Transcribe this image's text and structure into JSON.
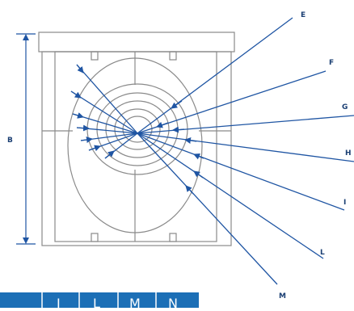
{
  "diagram": {
    "colors": {
      "frame": "#8a8a8a",
      "arrow": "#1f55a3",
      "label": "#1b3f73",
      "header_band": "#1c6fb6"
    },
    "dimension_label": "B",
    "ray_labels": [
      "E",
      "F",
      "G",
      "H",
      "I",
      "L",
      "M"
    ],
    "header_labels": [
      "I",
      "L",
      "M",
      "N"
    ]
  }
}
